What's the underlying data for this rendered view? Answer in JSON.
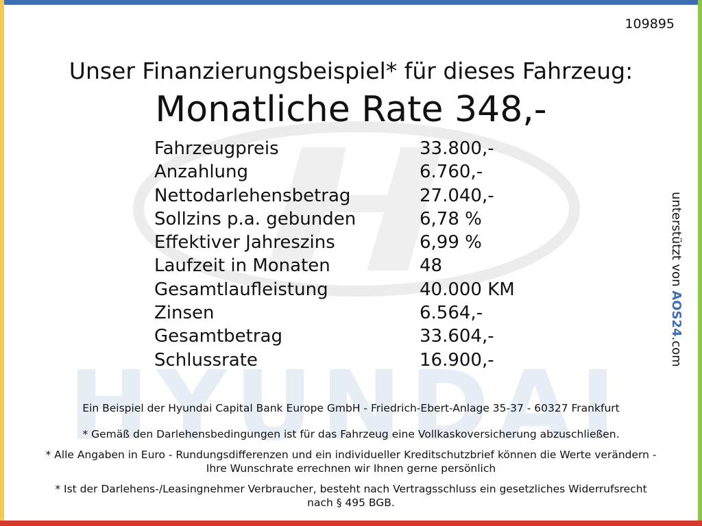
{
  "id_number": "109895",
  "title": "Unser Finanzierungsbeispiel* für dieses Fahrzeug:",
  "rate_heading": "Monatliche Rate 348,-",
  "table": {
    "rows": [
      [
        "Fahrzeugpreis",
        "33.800,-"
      ],
      [
        "Anzahlung",
        "6.760,-"
      ],
      [
        "Nettodarlehensbetrag",
        "27.040,-"
      ],
      [
        "Sollzins p.a. gebunden",
        "6,78 %"
      ],
      [
        "Effektiver Jahreszins",
        "6,99 %"
      ],
      [
        "Laufzeit in Monaten",
        "48"
      ],
      [
        "Gesamtlaufleistung",
        "40.000 KM"
      ],
      [
        "Zinsen",
        "6.564,-"
      ],
      [
        "Gesamtbetrag",
        "33.604,-"
      ],
      [
        "Schlussrate",
        "16.900,-"
      ]
    ]
  },
  "watermark": "HYUNDAI",
  "side_note": {
    "prefix": "unterstützt von ",
    "brand": "AOS24",
    "suffix": ".com"
  },
  "footer": {
    "bank_line": "Ein Beispiel der Hyundai Capital Bank Europe GmbH - Friedrich-Ebert-Anlage 35-37 - 60327 Frankfurt",
    "notes": [
      "* Gemäß den Darlehensbedingungen ist für das Fahrzeug eine Vollkaskoversicherung abzuschließen.",
      "* Alle Angaben in Euro - Rundungsdifferenzen und ein individueller Kreditschutzbrief können die Werte verändern - Ihre Wunschrate errechnen wir Ihnen gerne persönlich",
      "* Ist der Darlehens-/Leasingnehmer Verbraucher, besteht nach Vertragsschluss ein gesetzliches Widerrufsrecht nach § 495 BGB."
    ]
  }
}
